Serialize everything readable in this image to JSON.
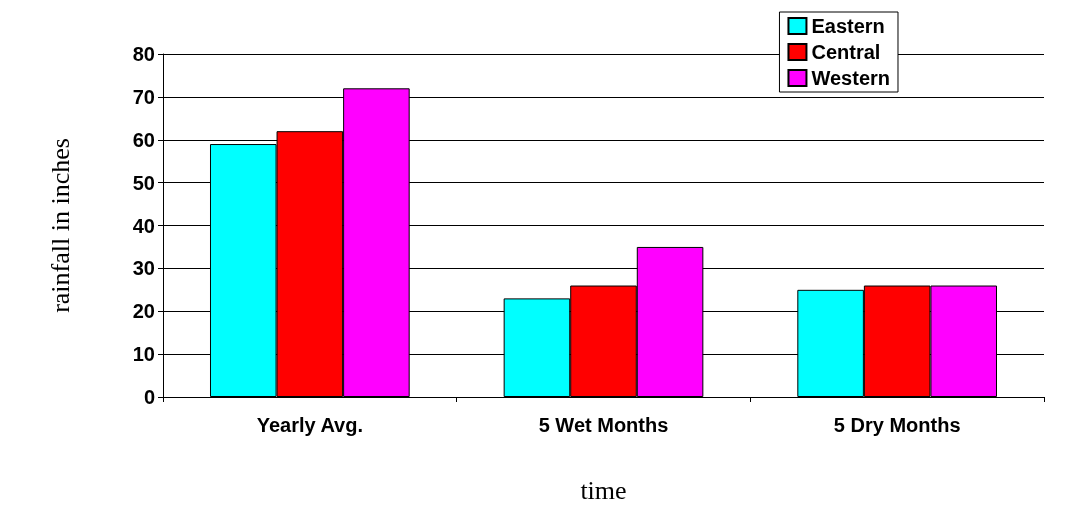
{
  "chart_data": {
    "type": "bar",
    "xlabel": "time",
    "ylabel": "rainfall in inches",
    "categories": [
      "Yearly Avg.",
      "5 Wet Months",
      "5 Dry Months"
    ],
    "series": [
      {
        "name": "Eastern",
        "color": "#00ffff",
        "values": [
          59,
          23,
          25
        ]
      },
      {
        "name": "Central",
        "color": "#ff0000",
        "values": [
          62,
          26,
          26
        ]
      },
      {
        "name": "Western",
        "color": "#ff00ff",
        "values": [
          72,
          35,
          26
        ]
      }
    ],
    "ylim": [
      0,
      80
    ],
    "yticks": [
      0,
      10,
      20,
      30,
      40,
      50,
      60,
      70,
      80
    ],
    "grid": "y",
    "legend": "top right"
  }
}
